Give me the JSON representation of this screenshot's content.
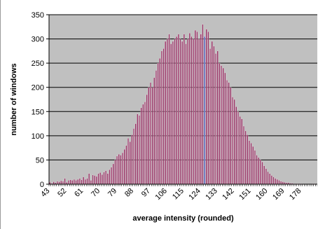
{
  "chart_data": {
    "type": "bar",
    "title": "",
    "xlabel": "average intensity (rounded)",
    "ylabel": "number of windows",
    "ylim": [
      0,
      350
    ],
    "yticks": [
      0,
      50,
      100,
      150,
      200,
      250,
      300,
      350
    ],
    "xticks": [
      43,
      52,
      61,
      70,
      79,
      88,
      97,
      106,
      115,
      124,
      133,
      142,
      151,
      160,
      169,
      178
    ],
    "x_start": 43,
    "x_end": 186,
    "grid": true,
    "legend": "none",
    "colors": {
      "plot_background": "#c0c0c0",
      "bar_fill": "#993366",
      "bar_edge": "#f2e6ec",
      "highlight_bar": "#3f51b5",
      "gridline": "#000000"
    },
    "highlight_x": 126,
    "values": [
      4,
      2,
      5,
      3,
      6,
      5,
      7,
      6,
      12,
      4,
      8,
      9,
      8,
      10,
      8,
      10,
      12,
      9,
      15,
      10,
      12,
      22,
      8,
      19,
      18,
      16,
      22,
      24,
      20,
      25,
      28,
      22,
      30,
      35,
      42,
      50,
      58,
      62,
      60,
      65,
      72,
      80,
      95,
      88,
      102,
      115,
      125,
      145,
      142,
      158,
      165,
      170,
      185,
      200,
      210,
      200,
      220,
      235,
      250,
      260,
      275,
      280,
      295,
      300,
      310,
      290,
      295,
      300,
      305,
      310,
      300,
      295,
      310,
      290,
      300,
      312,
      305,
      300,
      318,
      315,
      300,
      310,
      330,
      305,
      320,
      315,
      280,
      295,
      285,
      270,
      275,
      250,
      245,
      240,
      230,
      215,
      210,
      200,
      180,
      175,
      160,
      150,
      140,
      135,
      120,
      110,
      102,
      90,
      85,
      78,
      70,
      60,
      55,
      50,
      46,
      38,
      32,
      26,
      22,
      18,
      15,
      12,
      10,
      8,
      6,
      5,
      4,
      3,
      3,
      2,
      2,
      1,
      1,
      1,
      1,
      1,
      0,
      0,
      0,
      0,
      0,
      1,
      1,
      0
    ]
  }
}
